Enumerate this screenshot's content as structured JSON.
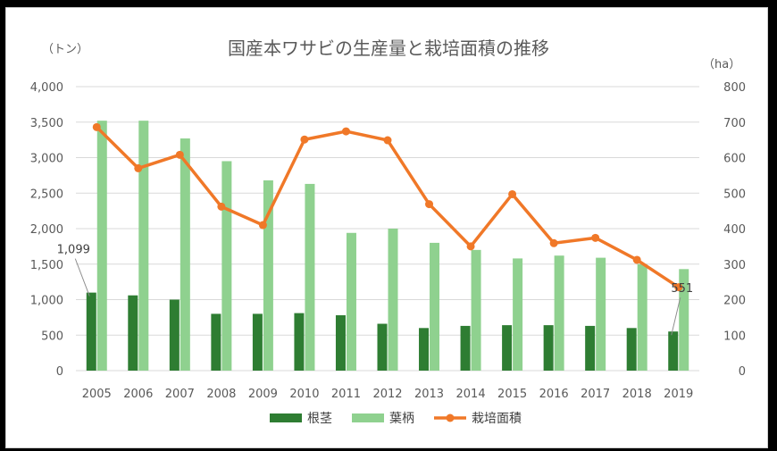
{
  "chart_data": {
    "type": "bar",
    "title": "国産本ワサビの生産量と栽培面積の推移",
    "left_axis_unit": "（トン）",
    "right_axis_unit": "（ha）",
    "categories": [
      "2005",
      "2006",
      "2007",
      "2008",
      "2009",
      "2010",
      "2011",
      "2012",
      "2013",
      "2014",
      "2015",
      "2016",
      "2017",
      "2018",
      "2019"
    ],
    "ylim_left": [
      0,
      4000
    ],
    "ylim_right": [
      0,
      800
    ],
    "left_ticks": [
      "0",
      "500",
      "1,000",
      "1,500",
      "2,000",
      "2,500",
      "3,000",
      "3,500",
      "4,000"
    ],
    "right_ticks": [
      "0",
      "100",
      "200",
      "300",
      "400",
      "500",
      "600",
      "700",
      "800"
    ],
    "grid": true,
    "legend_position": "bottom",
    "series": [
      {
        "name": "根茎",
        "kind": "bar",
        "axis": "left",
        "color": "#2e7d32",
        "values": [
          1099,
          1060,
          1000,
          800,
          800,
          810,
          780,
          660,
          600,
          630,
          640,
          640,
          630,
          600,
          551
        ]
      },
      {
        "name": "葉柄",
        "kind": "bar",
        "axis": "left",
        "color": "#8fd18f",
        "values": [
          3520,
          3520,
          3270,
          2950,
          2680,
          2630,
          1940,
          2000,
          1800,
          1700,
          1580,
          1620,
          1590,
          1500,
          1430
        ]
      },
      {
        "name": "栽培面積",
        "kind": "line",
        "axis": "right",
        "color": "#f07828",
        "values": [
          686,
          570,
          608,
          462,
          410,
          651,
          674,
          649,
          469,
          350,
          497,
          359,
          374,
          312,
          235
        ]
      }
    ],
    "annotations": [
      {
        "text": "1,099",
        "series": "根茎",
        "category": "2005"
      },
      {
        "text": "551",
        "series": "根茎",
        "category": "2019"
      }
    ]
  },
  "colors": {
    "grid": "#d9d9d9",
    "axis_text": "#595959",
    "title": "#595959"
  }
}
